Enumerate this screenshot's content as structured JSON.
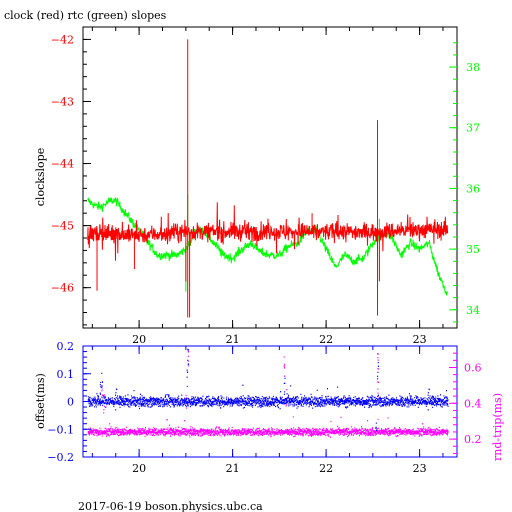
{
  "title": "clock (red) rtc (green) slopes",
  "footer": "2017-06-19 boson.physics.ubc.ca",
  "colors": {
    "clock": "#ff0000",
    "rtc": "#00ff00",
    "offset": "#0000ff",
    "rndtrip": "#ff00ff",
    "frame": "#000000"
  },
  "chart_data": [
    {
      "type": "line",
      "xlim": [
        19.4,
        23.4
      ],
      "xticks": [
        20,
        21,
        22,
        23
      ],
      "left_axis": {
        "label": "clockslope",
        "ylim": [
          -46.65,
          -41.8
        ],
        "ticks": [
          -42,
          -43,
          -44,
          -45,
          -46
        ],
        "color": "#ff0000"
      },
      "right_axis": {
        "label": "",
        "ylim": [
          33.7,
          38.66
        ],
        "ticks": [
          34,
          35,
          36,
          37,
          38
        ],
        "color": "#00ff00"
      },
      "series": [
        {
          "name": "clock",
          "axis": "left",
          "color": "#ff0000",
          "baseline": -45.1,
          "noise": 0.14,
          "trend": [
            [
              19.45,
              -45.12
            ],
            [
              20.0,
              -45.15
            ],
            [
              20.5,
              -45.1
            ],
            [
              21.0,
              -45.1
            ],
            [
              21.5,
              -45.1
            ],
            [
              22.0,
              -45.1
            ],
            [
              22.5,
              -45.1
            ],
            [
              23.0,
              -45.07
            ],
            [
              23.3,
              -45.05
            ]
          ],
          "spikes": [
            [
              19.55,
              -46.05
            ],
            [
              19.95,
              -45.7
            ],
            [
              20.52,
              -42.0
            ],
            [
              20.52,
              -46.48
            ],
            [
              20.54,
              -46.48
            ],
            [
              20.5,
              -45.9
            ],
            [
              22.55,
              -43.3
            ],
            [
              22.55,
              -46.45
            ],
            [
              22.57,
              -45.9
            ],
            [
              21.85,
              -44.8
            ]
          ]
        },
        {
          "name": "rtc",
          "axis": "right",
          "color": "#00ff00",
          "trend": [
            [
              19.45,
              35.8
            ],
            [
              19.55,
              35.7
            ],
            [
              19.6,
              35.7
            ],
            [
              19.7,
              35.8
            ],
            [
              19.75,
              35.8
            ],
            [
              19.8,
              35.7
            ],
            [
              19.9,
              35.5
            ],
            [
              20.0,
              35.3
            ],
            [
              20.1,
              35.1
            ],
            [
              20.2,
              34.9
            ],
            [
              20.3,
              34.9
            ],
            [
              20.4,
              34.9
            ],
            [
              20.5,
              35.0
            ],
            [
              20.55,
              35.1
            ],
            [
              20.6,
              35.3
            ],
            [
              20.7,
              35.3
            ],
            [
              20.8,
              35.1
            ],
            [
              20.9,
              34.9
            ],
            [
              21.0,
              34.85
            ],
            [
              21.1,
              35.0
            ],
            [
              21.2,
              35.1
            ],
            [
              21.3,
              34.95
            ],
            [
              21.4,
              34.9
            ],
            [
              21.5,
              34.9
            ],
            [
              21.6,
              35.05
            ],
            [
              21.7,
              35.1
            ],
            [
              21.8,
              35.3
            ],
            [
              21.9,
              35.3
            ],
            [
              22.0,
              35.0
            ],
            [
              22.1,
              34.7
            ],
            [
              22.2,
              34.9
            ],
            [
              22.3,
              34.8
            ],
            [
              22.4,
              34.85
            ],
            [
              22.5,
              35.1
            ],
            [
              22.6,
              35.3
            ],
            [
              22.7,
              35.2
            ],
            [
              22.8,
              34.9
            ],
            [
              22.9,
              35.1
            ],
            [
              23.0,
              35.0
            ],
            [
              23.1,
              35.1
            ],
            [
              23.2,
              34.6
            ],
            [
              23.3,
              34.25
            ]
          ],
          "noise": 0.12,
          "spikes": [
            [
              20.52,
              35.9
            ],
            [
              20.5,
              34.3
            ],
            [
              22.55,
              34.0
            ],
            [
              22.57,
              35.5
            ]
          ]
        }
      ]
    },
    {
      "type": "scatter",
      "xlim": [
        19.4,
        23.4
      ],
      "xticks": [
        20,
        21,
        22,
        23
      ],
      "left_axis": {
        "label": "offset(ms)",
        "ylim": [
          -0.2,
          0.2
        ],
        "ticks": [
          0.2,
          0.1,
          0,
          -0.1,
          -0.2
        ],
        "tick_labels": [
          "0.2",
          "0.1",
          "0",
          "-0.1",
          "-0.2"
        ],
        "color": "#0000ff"
      },
      "right_axis": {
        "label": "rnd-trip(ms)",
        "ylim": [
          0.1,
          0.72
        ],
        "ticks": [
          0.6,
          0.4,
          0.2
        ],
        "tick_labels": [
          "0.6",
          "0.4",
          "0.2"
        ],
        "color": "#ff00ff"
      },
      "series": [
        {
          "name": "offset",
          "axis": "left",
          "color": "#0000ff",
          "x_range": [
            19.45,
            23.3
          ],
          "center": 0.0,
          "spread": 0.018,
          "outliers": [
            [
              19.6,
              0.11
            ],
            [
              19.58,
              0.08
            ],
            [
              20.52,
              0.19
            ],
            [
              20.51,
              0.12
            ],
            [
              21.55,
              0.09
            ],
            [
              22.55,
              0.15
            ],
            [
              22.53,
              -0.04
            ]
          ]
        },
        {
          "name": "rnd-trip",
          "axis": "right",
          "color": "#ff00ff",
          "x_range": [
            19.45,
            23.3
          ],
          "center": 0.24,
          "spread": 0.02,
          "outliers": [
            [
              19.6,
              0.52
            ],
            [
              19.62,
              0.45
            ],
            [
              20.52,
              0.7
            ],
            [
              20.5,
              0.45
            ],
            [
              21.55,
              0.66
            ],
            [
              21.57,
              0.5
            ],
            [
              22.55,
              0.68
            ],
            [
              22.55,
              0.52
            ]
          ]
        }
      ]
    }
  ]
}
